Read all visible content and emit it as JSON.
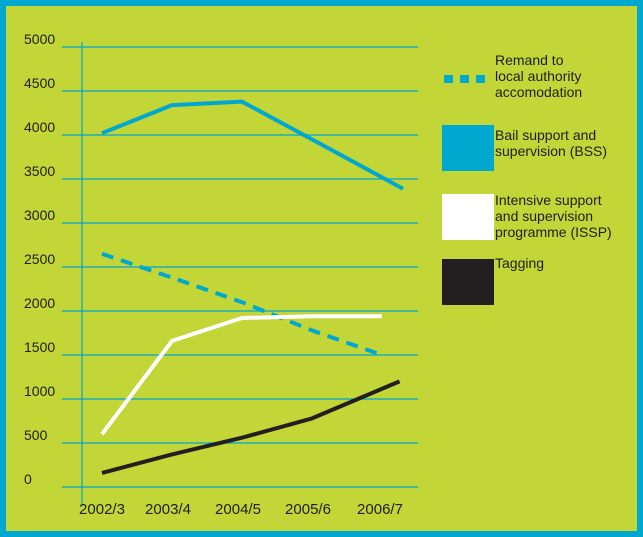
{
  "chart_data": {
    "type": "line",
    "categories": [
      "2002/3",
      "2003/4",
      "2004/5",
      "2005/6",
      "2006/7"
    ],
    "y_ticks": [
      "0",
      "500",
      "1000",
      "1500",
      "2000",
      "2500",
      "3000",
      "3500",
      "4000",
      "4500",
      "5000"
    ],
    "ylim": [
      0,
      5000
    ],
    "grid": true,
    "legend_position": "right",
    "series": [
      {
        "name": "Remand to\nlocal authority\naccomodation",
        "color": "#00a7cf",
        "style": "dashed",
        "values": [
          2650,
          2380,
          2100,
          1780,
          1500
        ],
        "x_end": 4.0
      },
      {
        "name": "Bail support and\nsupervision (BSS)",
        "color": "#00a7cf",
        "style": "solid",
        "values": [
          4020,
          4340,
          4380,
          3950,
          3520
        ],
        "x_end": 4.3,
        "value_end": 3390
      },
      {
        "name": "Intensive support\nand supervision\nprogramme (ISSP)",
        "color": "#ffffff",
        "style": "solid",
        "values": [
          600,
          1660,
          1920,
          1940,
          1940
        ],
        "x_end": 4.0
      },
      {
        "name": "Tagging",
        "color": "#231f20",
        "style": "solid",
        "values": [
          160,
          370,
          560,
          780,
          1100
        ],
        "x_end": 4.25,
        "value_end": 1200
      }
    ]
  }
}
